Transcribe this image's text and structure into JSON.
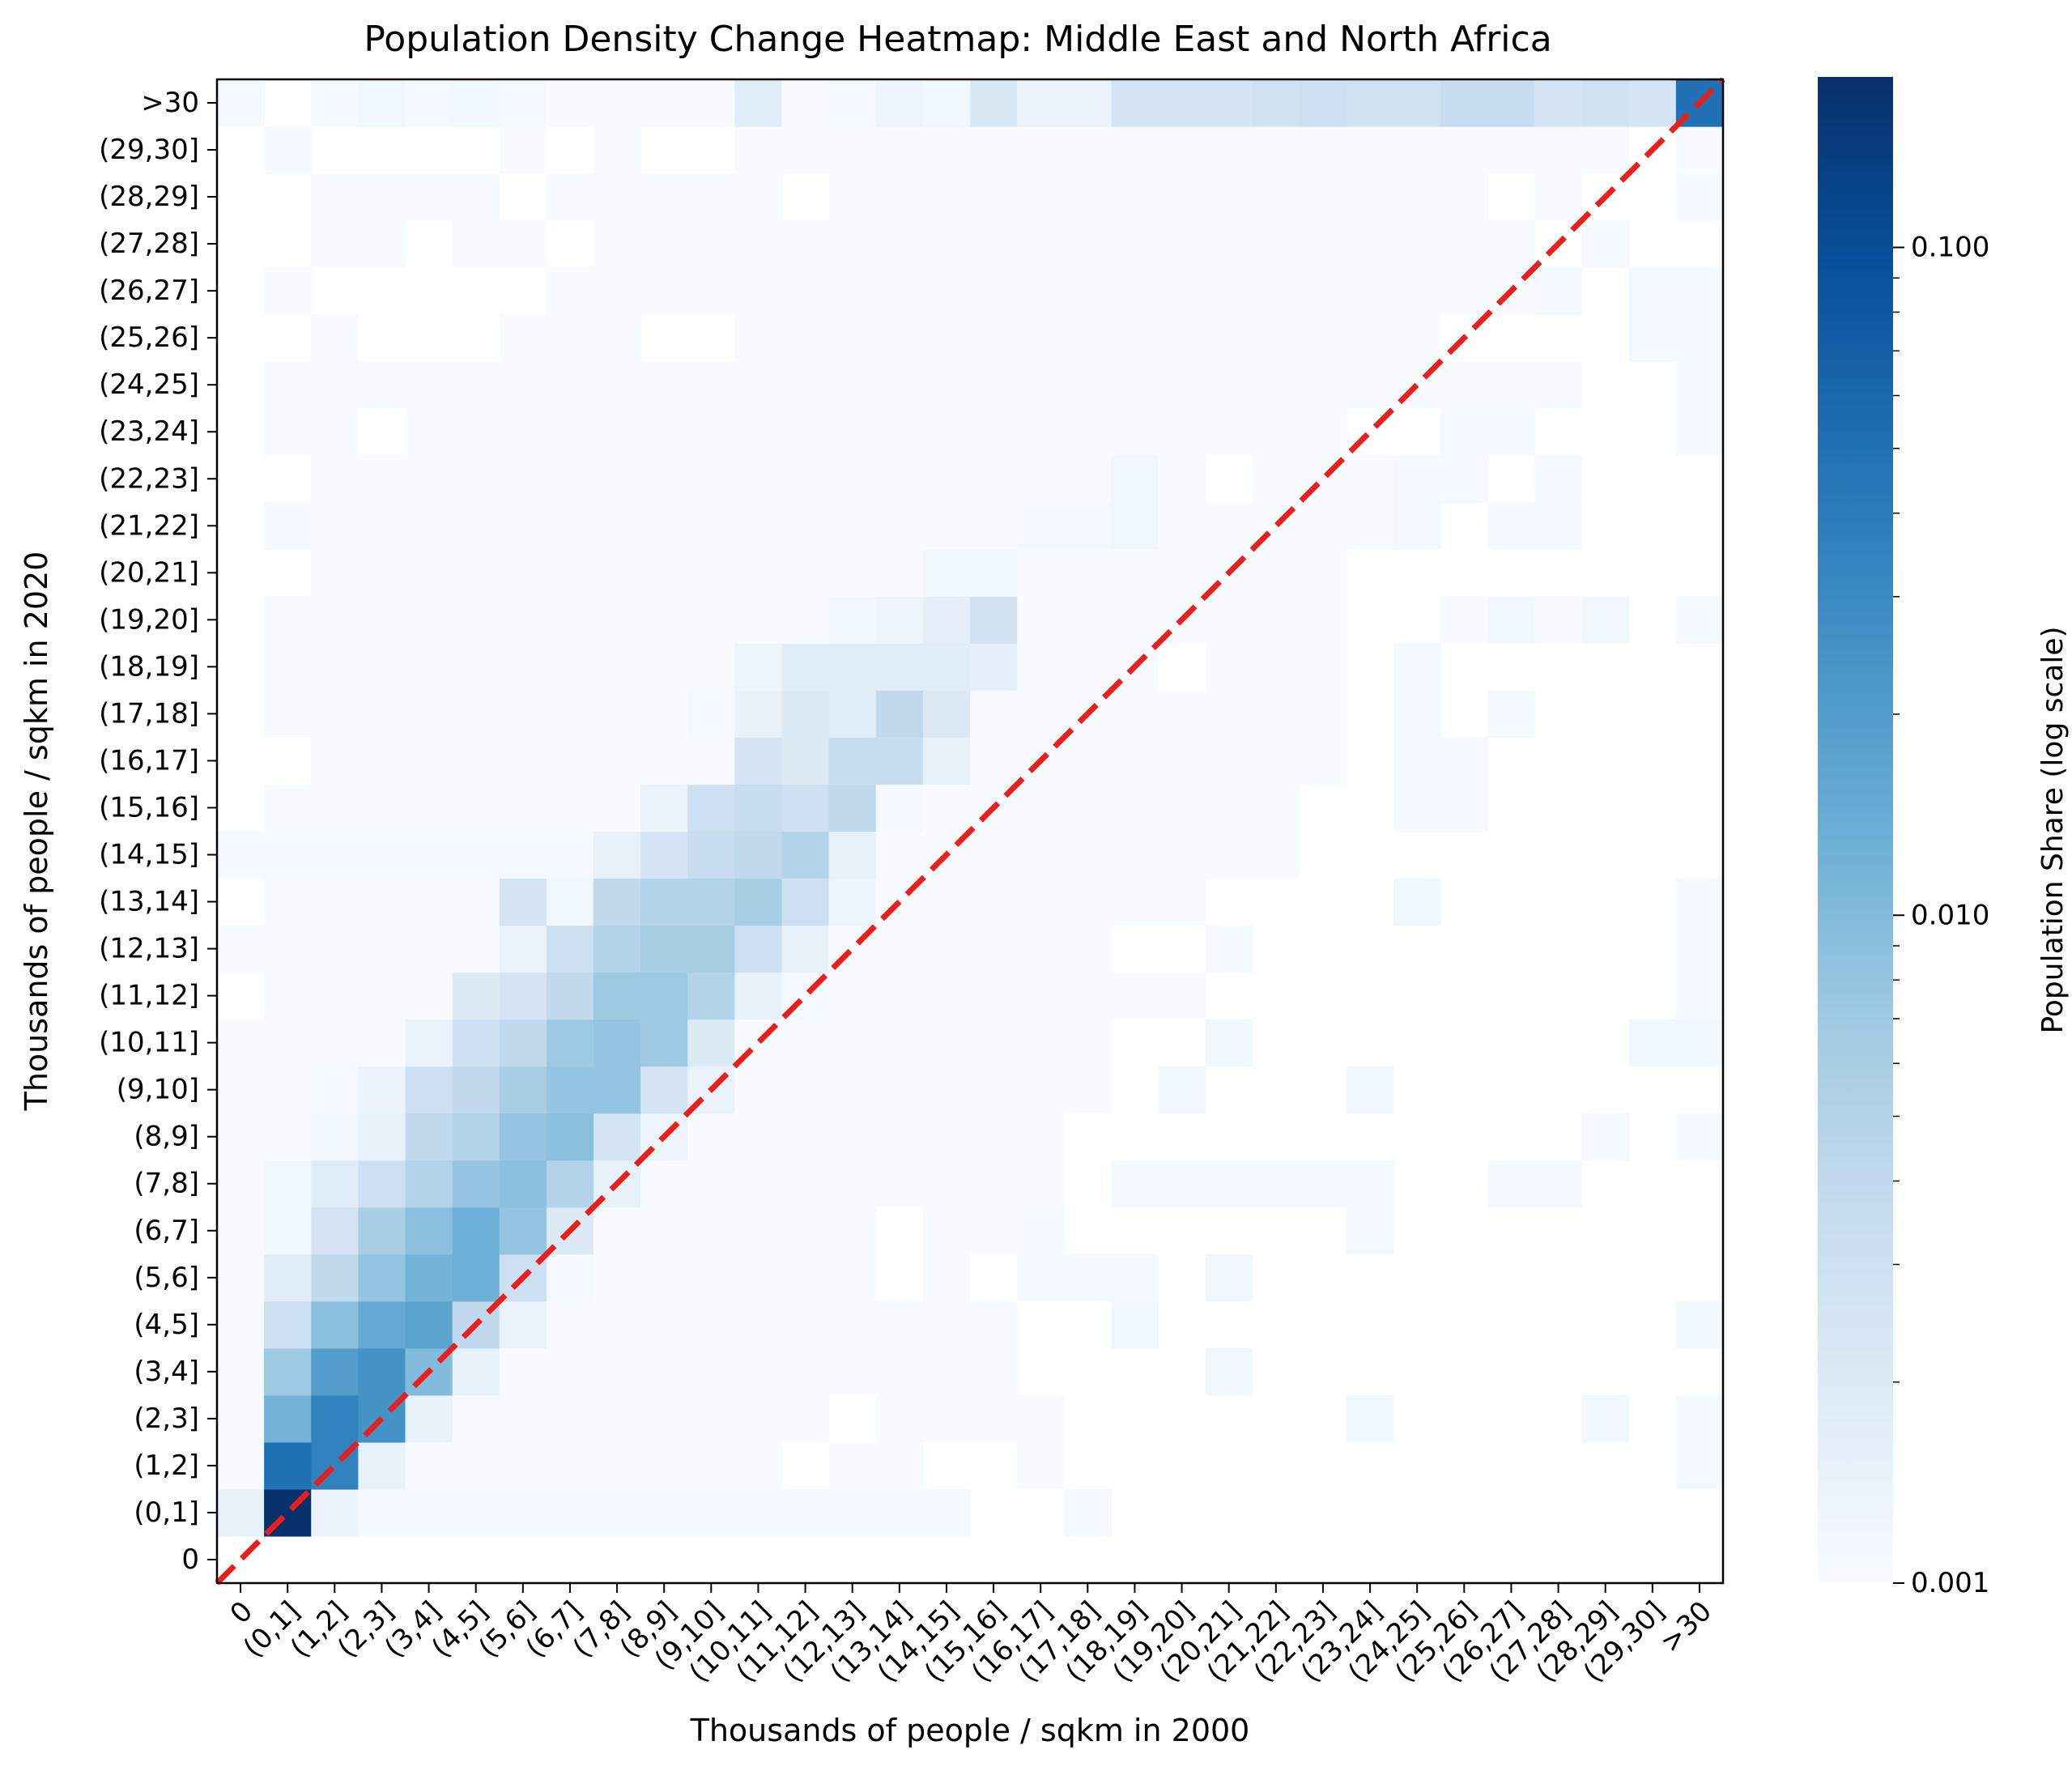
{
  "chart_data": {
    "type": "heatmap",
    "title": "Population Density Change Heatmap: Middle East and North Africa",
    "xlabel": "Thousands of people / sqkm in 2000",
    "ylabel": "Thousands of people / sqkm in 2020",
    "colorbar_label": "Population Share (log scale)",
    "colormap": "Blues",
    "color_scale": "log",
    "vmin": 0.001,
    "vmax": 0.18,
    "colorbar_ticks": [
      "0.001",
      "0.010",
      "0.100"
    ],
    "categories": [
      "0",
      "(0,1]",
      "(1,2]",
      "(2,3]",
      "(3,4]",
      "(4,5]",
      "(5,6]",
      "(6,7]",
      "(7,8]",
      "(8,9]",
      "(9,10]",
      "(10,11]",
      "(11,12]",
      "(12,13]",
      "(13,14]",
      "(14,15]",
      "(15,16]",
      "(16,17]",
      "(17,18]",
      "(18,19]",
      "(19,20]",
      "(20,21]",
      "(21,22]",
      "(22,23]",
      "(23,24]",
      "(24,25]",
      "(25,26]",
      "(26,27]",
      "(27,28]",
      "(28,29]",
      "(29,30]",
      ">30"
    ],
    "diagonal": {
      "style": "dashed",
      "color": "#e8201c"
    },
    "note_values": "values: rows indexed by 2020 category (0 = '0' ... 31 = '>30'), columns by 2000 category; empty/white cells = null; light background cells = 0.001",
    "background_value": 0.001,
    "values": {
      "0": [
        null,
        null,
        null,
        null,
        null,
        null,
        null,
        null,
        null,
        null,
        null,
        null,
        null,
        null,
        null,
        null,
        null,
        null,
        null,
        null,
        null,
        null,
        null,
        null,
        null,
        null,
        null,
        null,
        null,
        null,
        null,
        null
      ],
      "1": [
        0.0015,
        0.18,
        0.0014,
        0.0011,
        0.0011,
        0.0011,
        0.0011,
        0.0011,
        0.0011,
        0.0011,
        0.0011,
        0.0011,
        0.0011,
        0.0011,
        0.0011,
        0.0011,
        null,
        null,
        0.0011,
        null,
        null,
        null,
        null,
        null,
        null,
        null,
        null,
        null,
        null,
        null,
        null,
        null
      ],
      "2": [
        0.001,
        0.05,
        0.035,
        0.0015,
        0.001,
        0.001,
        0.001,
        0.001,
        0.001,
        0.001,
        0.001,
        0.001,
        null,
        0.001,
        0.001,
        null,
        null,
        0.001,
        null,
        null,
        null,
        null,
        null,
        null,
        null,
        null,
        null,
        null,
        null,
        null,
        null,
        0.0011
      ],
      "3": [
        0.001,
        0.012,
        0.035,
        0.025,
        0.0015,
        0.001,
        0.001,
        0.001,
        0.001,
        0.001,
        0.001,
        0.001,
        0.001,
        null,
        0.001,
        0.001,
        0.001,
        0.001,
        null,
        null,
        null,
        null,
        null,
        null,
        0.0012,
        null,
        null,
        null,
        null,
        0.0012,
        null,
        0.0011
      ],
      "4": [
        0.001,
        0.007,
        0.02,
        0.025,
        0.01,
        0.0015,
        0.001,
        0.001,
        0.001,
        0.001,
        0.001,
        0.001,
        0.001,
        0.001,
        0.001,
        0.001,
        0.001,
        null,
        null,
        null,
        null,
        0.0012,
        null,
        null,
        null,
        null,
        null,
        null,
        null,
        null,
        null,
        null
      ],
      "5": [
        0.001,
        0.003,
        0.009,
        0.015,
        0.017,
        0.004,
        0.0014,
        0.001,
        0.001,
        0.001,
        0.001,
        0.001,
        0.001,
        0.001,
        0.001,
        0.001,
        0.001,
        null,
        null,
        0.0012,
        null,
        null,
        null,
        null,
        null,
        null,
        null,
        null,
        null,
        null,
        null,
        0.0012
      ],
      "6": [
        0.001,
        0.0018,
        0.004,
        0.008,
        0.012,
        0.013,
        0.003,
        0.0011,
        0.001,
        0.001,
        0.001,
        0.001,
        0.001,
        0.001,
        null,
        0.001,
        null,
        0.0011,
        0.0011,
        0.0011,
        null,
        0.0012,
        null,
        null,
        null,
        null,
        null,
        null,
        null,
        null,
        null,
        null
      ],
      "7": [
        0.001,
        0.0012,
        0.0025,
        0.006,
        0.009,
        0.013,
        0.008,
        0.002,
        0.001,
        0.001,
        0.001,
        0.001,
        0.001,
        0.001,
        null,
        0.001,
        0.001,
        0.0011,
        null,
        null,
        null,
        null,
        null,
        null,
        0.0011,
        null,
        null,
        null,
        null,
        null,
        null,
        null
      ],
      "8": [
        0.001,
        0.0012,
        0.0018,
        0.003,
        0.005,
        0.008,
        0.009,
        0.005,
        0.0015,
        0.001,
        0.001,
        0.001,
        0.001,
        0.001,
        0.001,
        0.001,
        0.001,
        0.001,
        null,
        0.0011,
        0.0011,
        0.0011,
        0.0011,
        0.0011,
        0.0011,
        null,
        null,
        0.0011,
        0.0011,
        null,
        null,
        null
      ],
      "9": [
        0.001,
        0.001,
        0.0012,
        0.0015,
        0.004,
        0.005,
        0.008,
        0.009,
        0.0025,
        0.0013,
        0.001,
        0.001,
        0.001,
        0.001,
        0.001,
        0.001,
        0.001,
        0.001,
        null,
        null,
        null,
        null,
        null,
        null,
        null,
        null,
        null,
        null,
        null,
        0.0011,
        null,
        0.0011
      ],
      "10": [
        0.001,
        0.001,
        0.0011,
        0.0014,
        0.003,
        0.004,
        0.006,
        0.008,
        0.008,
        0.0025,
        0.0014,
        0.001,
        0.001,
        0.001,
        0.001,
        0.001,
        0.001,
        0.001,
        0.001,
        null,
        0.0012,
        null,
        null,
        null,
        0.0012,
        null,
        null,
        null,
        null,
        null,
        null,
        null
      ],
      "11": [
        0.001,
        0.001,
        0.001,
        0.001,
        0.0014,
        0.003,
        0.004,
        0.007,
        0.008,
        0.007,
        0.002,
        0.001,
        0.001,
        0.001,
        0.001,
        0.001,
        0.001,
        0.001,
        0.001,
        null,
        null,
        0.0012,
        null,
        null,
        null,
        null,
        null,
        null,
        null,
        null,
        0.0012,
        0.0012
      ],
      "12": [
        null,
        0.001,
        0.001,
        0.001,
        0.001,
        0.002,
        0.0025,
        0.004,
        0.007,
        0.007,
        0.005,
        0.0015,
        0.0011,
        0.001,
        0.001,
        0.001,
        0.001,
        0.001,
        0.001,
        0.001,
        0.001,
        null,
        null,
        null,
        null,
        null,
        null,
        null,
        null,
        null,
        null,
        0.0011
      ],
      "13": [
        0.001,
        0.001,
        0.001,
        0.001,
        0.001,
        0.001,
        0.0014,
        0.003,
        0.005,
        0.006,
        0.006,
        0.003,
        0.0015,
        0.001,
        0.001,
        0.001,
        0.001,
        0.001,
        0.001,
        null,
        null,
        0.0011,
        null,
        null,
        null,
        null,
        null,
        null,
        null,
        null,
        null,
        0.0011
      ],
      "14": [
        null,
        0.001,
        0.001,
        0.001,
        0.001,
        0.001,
        0.0025,
        0.0012,
        0.004,
        0.005,
        0.005,
        0.006,
        0.003,
        0.0013,
        0.001,
        0.001,
        0.001,
        0.001,
        0.001,
        0.001,
        0.001,
        null,
        null,
        null,
        null,
        0.0012,
        null,
        null,
        null,
        null,
        null,
        0.0011
      ],
      "15": [
        0.0011,
        0.0011,
        0.0011,
        0.0011,
        0.0011,
        0.0011,
        0.0011,
        0.0011,
        0.0015,
        0.0025,
        0.0035,
        0.004,
        0.005,
        0.0015,
        0.001,
        0.001,
        0.001,
        0.001,
        0.001,
        0.001,
        0.001,
        0.001,
        0.001,
        null,
        null,
        null,
        null,
        null,
        null,
        null,
        null,
        null
      ],
      "16": [
        null,
        0.001,
        0.001,
        0.001,
        0.001,
        0.001,
        0.001,
        0.001,
        0.001,
        0.0014,
        0.003,
        0.0035,
        0.003,
        0.004,
        0.0011,
        0.001,
        0.001,
        0.001,
        0.001,
        0.001,
        0.001,
        0.001,
        0.001,
        null,
        null,
        0.0011,
        0.0011,
        null,
        null,
        null,
        null,
        null
      ],
      "17": [
        null,
        null,
        0.001,
        0.001,
        0.001,
        0.001,
        0.001,
        0.001,
        0.001,
        0.001,
        0.001,
        0.0025,
        0.002,
        0.0035,
        0.0035,
        0.0015,
        0.001,
        0.001,
        0.001,
        0.001,
        0.001,
        0.001,
        0.001,
        0.001,
        null,
        0.0011,
        0.0011,
        null,
        null,
        null,
        null,
        null
      ],
      "18": [
        null,
        0.001,
        0.001,
        0.001,
        0.001,
        0.001,
        0.001,
        0.001,
        0.001,
        0.001,
        0.0011,
        0.0015,
        0.002,
        0.0018,
        0.004,
        0.002,
        0.001,
        0.001,
        0.001,
        0.001,
        0.001,
        0.001,
        0.001,
        0.001,
        null,
        0.0011,
        null,
        0.0011,
        null,
        null,
        null,
        null
      ],
      "19": [
        null,
        0.001,
        0.001,
        0.001,
        0.001,
        0.001,
        0.001,
        0.001,
        0.001,
        0.001,
        0.001,
        0.0013,
        0.0018,
        0.0018,
        0.0018,
        0.0018,
        0.0016,
        0.001,
        0.001,
        0.001,
        null,
        0.001,
        0.001,
        0.001,
        null,
        0.0011,
        null,
        null,
        null,
        null,
        null,
        null
      ],
      "20": [
        null,
        0.001,
        0.001,
        0.001,
        0.001,
        0.001,
        0.001,
        0.001,
        0.001,
        0.001,
        0.001,
        0.001,
        0.001,
        0.0012,
        0.0013,
        0.0016,
        0.0028,
        0.001,
        0.001,
        0.001,
        0.001,
        0.001,
        0.001,
        0.001,
        null,
        null,
        0.001,
        0.0012,
        0.001,
        0.0012,
        null,
        0.0011
      ],
      "21": [
        null,
        null,
        0.001,
        0.001,
        0.001,
        0.001,
        0.001,
        0.001,
        0.001,
        0.001,
        0.001,
        0.001,
        0.001,
        0.001,
        0.001,
        0.0012,
        0.0012,
        0.001,
        0.001,
        0.001,
        0.001,
        0.001,
        0.001,
        0.001,
        null,
        null,
        null,
        null,
        null,
        null,
        null,
        null
      ],
      "22": [
        null,
        0.0011,
        0.001,
        0.001,
        0.001,
        0.001,
        0.001,
        0.001,
        0.001,
        0.001,
        0.001,
        0.001,
        0.001,
        0.001,
        0.001,
        0.001,
        0.001,
        0.0011,
        0.0011,
        0.0012,
        0.001,
        0.001,
        0.001,
        0.001,
        0.001,
        0.0011,
        null,
        0.0011,
        0.0011,
        null,
        null,
        null
      ],
      "23": [
        null,
        null,
        0.001,
        0.001,
        0.001,
        0.001,
        0.001,
        0.001,
        0.001,
        0.001,
        0.001,
        0.001,
        0.001,
        0.001,
        0.001,
        0.001,
        0.001,
        0.001,
        0.001,
        0.0012,
        0.001,
        null,
        0.001,
        0.001,
        0.001,
        0.0011,
        0.0011,
        null,
        0.0011,
        null,
        null,
        null
      ],
      "24": [
        null,
        0.001,
        0.001,
        null,
        0.001,
        0.001,
        0.001,
        0.001,
        0.001,
        0.001,
        0.001,
        0.001,
        0.001,
        0.001,
        0.001,
        0.001,
        0.001,
        0.001,
        0.001,
        0.001,
        0.001,
        0.001,
        0.001,
        0.001,
        null,
        null,
        0.0011,
        0.0011,
        null,
        null,
        null,
        0.0011
      ],
      "25": [
        null,
        0.001,
        0.001,
        0.001,
        0.001,
        0.001,
        0.001,
        0.001,
        0.001,
        0.001,
        0.001,
        0.001,
        0.001,
        0.001,
        0.001,
        0.001,
        0.001,
        0.001,
        0.001,
        0.001,
        0.001,
        0.001,
        0.001,
        0.001,
        0.001,
        0.001,
        0.001,
        0.001,
        0.001,
        null,
        null,
        0.0011
      ],
      "26": [
        null,
        null,
        0.001,
        null,
        null,
        null,
        0.001,
        0.001,
        0.001,
        null,
        null,
        0.001,
        0.001,
        0.001,
        0.001,
        0.001,
        0.001,
        0.001,
        0.001,
        0.001,
        0.001,
        0.001,
        0.001,
        0.001,
        0.001,
        0.001,
        null,
        null,
        null,
        null,
        0.0011,
        0.0011
      ],
      "27": [
        null,
        0.001,
        null,
        null,
        null,
        null,
        null,
        0.001,
        0.001,
        0.001,
        0.001,
        0.001,
        0.001,
        0.001,
        0.001,
        0.001,
        0.001,
        0.001,
        0.001,
        0.001,
        0.001,
        0.001,
        0.001,
        0.001,
        0.001,
        0.001,
        0.001,
        0.001,
        0.0011,
        null,
        0.0011,
        0.0011
      ],
      "28": [
        null,
        null,
        0.001,
        0.001,
        null,
        0.001,
        0.001,
        null,
        0.001,
        0.001,
        0.001,
        0.001,
        0.001,
        0.001,
        0.001,
        0.001,
        0.001,
        0.001,
        0.001,
        0.001,
        0.001,
        0.001,
        0.001,
        0.001,
        0.001,
        0.001,
        0.001,
        0.001,
        null,
        0.0011,
        null,
        null
      ],
      "29": [
        null,
        null,
        0.001,
        0.001,
        0.001,
        0.001,
        null,
        0.001,
        0.001,
        0.001,
        0.001,
        0.001,
        null,
        0.001,
        0.001,
        0.001,
        0.001,
        0.001,
        0.001,
        0.001,
        0.001,
        0.001,
        0.001,
        0.001,
        0.001,
        0.001,
        0.001,
        null,
        0.001,
        null,
        null,
        0.0011
      ],
      "30": [
        null,
        0.0011,
        null,
        null,
        null,
        null,
        0.001,
        null,
        0.001,
        null,
        null,
        0.001,
        0.001,
        0.001,
        0.001,
        0.001,
        0.001,
        0.001,
        0.001,
        0.001,
        0.001,
        0.001,
        0.001,
        0.001,
        0.001,
        0.001,
        0.001,
        0.001,
        0.001,
        0.001,
        null,
        0.001
      ],
      "31": [
        0.0011,
        null,
        0.0011,
        0.0012,
        0.0011,
        0.0012,
        0.0011,
        0.001,
        0.001,
        0.001,
        0.001,
        0.0018,
        0.001,
        0.0011,
        0.0013,
        0.0012,
        0.0022,
        0.0014,
        0.0014,
        0.0025,
        0.0025,
        0.0025,
        0.0028,
        0.003,
        0.0028,
        0.0028,
        0.0035,
        0.0035,
        0.0025,
        0.0028,
        0.0025,
        0.05
      ]
    }
  }
}
